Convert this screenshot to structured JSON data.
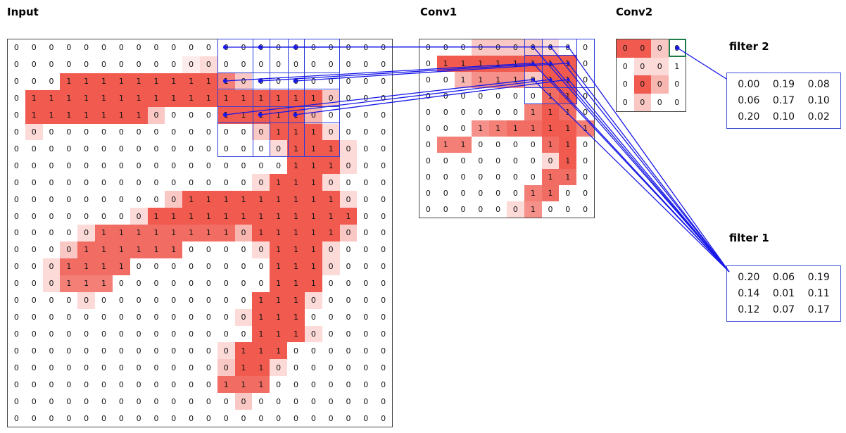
{
  "labels": {
    "input": "Input",
    "conv1": "Conv1",
    "conv2": "Conv2",
    "filter1": "filter 1",
    "filter2": "filter 2"
  },
  "colors": {
    "cell_red_rgb": "238,72,60",
    "line_blue": "#1717e8",
    "box_blue": "#2a3bdc",
    "green": "#1e7a46",
    "grid_border": "#444444",
    "filter_border": "#4356d6"
  },
  "input_grid": {
    "cols": 22,
    "values": [
      "0000000000000000000000",
      "0000000000000000000000",
      "0001111111111000000000",
      "0111111111111111110000",
      "0111111100001111100000",
      "0000000000000001110000",
      "0000000000000000111000",
      "0000000000000000111000",
      "0000000000000001110000",
      "0000000000111111111000",
      "0000000011111111111100",
      "0000011111111011111000",
      "0000111111000001110000",
      "0001111000000001110000",
      "0001110000000001110000",
      "0000000000000011100000",
      "0000000000000011100000",
      "0000000000000011100000",
      "0000000000000111000000",
      "0000000000000110000000",
      "0000000000001110000000",
      "0000000000000000000000",
      "0000000000000000000000"
    ],
    "shades": [
      "0000000000000000000000",
      "0000000000120000000000",
      "0009999999997300000000",
      "0999999999999999993000",
      "0999999930009999940000",
      "0200000000000039992000",
      "0000000000000002999200",
      "0000000000000000999200",
      "0000000000000029992000",
      "0000000003999999999200",
      "0000000299999999999900",
      "0000288888888499999300",
      "0003888888000029992000",
      "0028888000000009992000",
      "0027770000000009990000",
      "0000200000000099920000",
      "0000000000000299900000",
      "0000000000000099920000",
      "0000000000002999000000",
      "0000000000003992000000",
      "0000000000008880000000",
      "0000000000000300000000",
      "0000000000000000000000"
    ]
  },
  "conv1_grid": {
    "cols": 10,
    "values": [
      "0000000000",
      "0111111110",
      "0011110110",
      "0000000110",
      "0000001110",
      "0001111111",
      "0110000110",
      "0000000010",
      "0000000110",
      "0000001100",
      "0000001000"
    ],
    "shades": [
      "0003333200",
      "0999999990",
      "0046663990",
      "0000000890",
      "0000007980",
      "0006788997",
      "0770000890",
      "0000000290",
      "0000000880",
      "0000007800",
      "0000026000"
    ]
  },
  "conv2_grid": {
    "cols": 4,
    "values": [
      "0000",
      "0001",
      "0000",
      "0000"
    ],
    "shades": [
      "9930",
      "0220",
      "0940",
      "0300"
    ]
  },
  "filter1": {
    "rows": [
      [
        "0.20",
        "0.06",
        "0.19"
      ],
      [
        "0.14",
        "0.01",
        "0.11"
      ],
      [
        "0.12",
        "0.07",
        "0.17"
      ]
    ]
  },
  "filter2": {
    "rows": [
      [
        "0.00",
        "0.19",
        "0.08"
      ],
      [
        "0.06",
        "0.17",
        "0.10"
      ],
      [
        "0.20",
        "0.10",
        "0.02"
      ]
    ]
  }
}
